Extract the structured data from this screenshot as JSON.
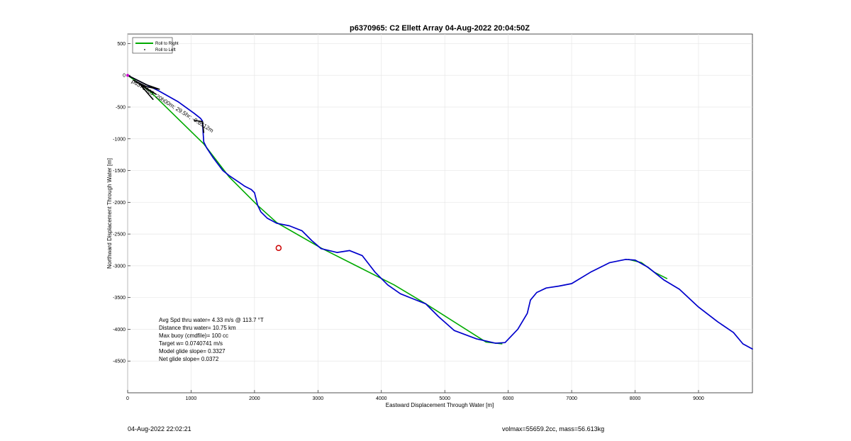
{
  "chart_data": {
    "type": "line",
    "title": "p6370965: C2 Ellett Array 04-Aug-2022 20:04:50Z",
    "xlabel": "Eastward Displacement Through Water [m]",
    "ylabel": "Northward Displacement Through Water [m]",
    "xlim": [
      0,
      9850
    ],
    "ylim": [
      -5000,
      650
    ],
    "xticks": [
      0,
      1000,
      2000,
      3000,
      4000,
      5000,
      6000,
      7000,
      8000,
      9000
    ],
    "yticks": [
      500,
      0,
      -500,
      -1000,
      -1500,
      -2000,
      -2500,
      -3000,
      -3500,
      -4000,
      -4500
    ],
    "grid": true,
    "legend": {
      "placement": "top-left",
      "entries": [
        {
          "label": "Roll to Right",
          "color": "#00aa00",
          "style": "line"
        },
        {
          "label": "Roll to Left",
          "color": "#000000",
          "style": "dot"
        }
      ]
    },
    "series": [
      {
        "name": "Roll to Right",
        "color": "#00aa00",
        "points": [
          [
            0,
            0
          ],
          [
            350,
            -250
          ],
          [
            1200,
            -1080
          ],
          [
            1600,
            -1600
          ],
          [
            2050,
            -2050
          ],
          [
            2350,
            -2320
          ],
          [
            3050,
            -2720
          ],
          [
            4200,
            -3300
          ],
          [
            4700,
            -3600
          ],
          [
            5650,
            -4200
          ],
          [
            5900,
            -4230
          ]
        ]
      },
      {
        "name": "",
        "color": "#00aa00",
        "points": [
          [
            7900,
            -2900
          ],
          [
            8100,
            -2950
          ],
          [
            8300,
            -3100
          ],
          [
            8500,
            -3200
          ]
        ]
      },
      {
        "name": "",
        "color": "#0000cc",
        "points": [
          [
            0,
            0
          ],
          [
            200,
            -100
          ],
          [
            500,
            -250
          ],
          [
            800,
            -420
          ],
          [
            1050,
            -600
          ],
          [
            1150,
            -680
          ],
          [
            1180,
            -720
          ],
          [
            1190,
            -900
          ],
          [
            1200,
            -1050
          ],
          [
            1250,
            -1150
          ],
          [
            1350,
            -1300
          ],
          [
            1500,
            -1500
          ],
          [
            1600,
            -1580
          ],
          [
            1750,
            -1680
          ],
          [
            1850,
            -1750
          ],
          [
            1950,
            -1800
          ],
          [
            2000,
            -1850
          ],
          [
            2050,
            -2050
          ],
          [
            2100,
            -2150
          ],
          [
            2200,
            -2250
          ],
          [
            2350,
            -2330
          ],
          [
            2550,
            -2370
          ],
          [
            2750,
            -2450
          ],
          [
            2900,
            -2600
          ],
          [
            3050,
            -2730
          ],
          [
            3300,
            -2790
          ],
          [
            3500,
            -2760
          ],
          [
            3700,
            -2840
          ],
          [
            3900,
            -3100
          ],
          [
            4100,
            -3300
          ],
          [
            4300,
            -3440
          ],
          [
            4500,
            -3520
          ],
          [
            4700,
            -3600
          ],
          [
            4900,
            -3800
          ],
          [
            5150,
            -4020
          ],
          [
            5500,
            -4150
          ],
          [
            5800,
            -4220
          ],
          [
            5950,
            -4210
          ],
          [
            6150,
            -4000
          ],
          [
            6300,
            -3750
          ],
          [
            6350,
            -3540
          ],
          [
            6450,
            -3420
          ],
          [
            6600,
            -3350
          ],
          [
            6800,
            -3320
          ],
          [
            7000,
            -3280
          ],
          [
            7300,
            -3100
          ],
          [
            7600,
            -2950
          ],
          [
            7850,
            -2900
          ],
          [
            8000,
            -2910
          ],
          [
            8200,
            -3020
          ],
          [
            8450,
            -3220
          ],
          [
            8700,
            -3370
          ],
          [
            9000,
            -3650
          ],
          [
            9300,
            -3880
          ],
          [
            9550,
            -4050
          ],
          [
            9700,
            -4230
          ],
          [
            9850,
            -4310
          ]
        ]
      },
      {
        "name": "Roll to Left",
        "color": "#000000",
        "points": [
          [
            0,
            0
          ],
          [
            300,
            -150
          ],
          [
            500,
            -220
          ],
          [
            300,
            -180
          ],
          [
            100,
            -80
          ],
          [
            450,
            -300
          ],
          [
            200,
            -150
          ],
          [
            400,
            -380
          ]
        ]
      },
      {
        "name": "",
        "color": "#000000",
        "points": [
          [
            1050,
            -710
          ],
          [
            1180,
            -730
          ],
          [
            1200,
            -900
          ]
        ]
      }
    ],
    "markers": [
      {
        "type": "circle",
        "color": "#cc0000",
        "x": 2380,
        "y": -2720
      }
    ],
    "waypoint_label": "p6370965: 20h00m; 29.5hr; -0.8512m",
    "annotations": [
      "Avg Spd thru water=  4.33 m/s @ 113.7 °T",
      "Distance thru water= 10.75 km",
      "Max buoy (cmdfile)= 100 cc",
      "Target w= 0.0740741 m/s",
      "Model glide slope= 0.3327",
      "Net glide slope= 0.0372"
    ]
  },
  "footer": {
    "left": "04-Aug-2022 22:02:21",
    "right": "volmax=55659.2cc, mass=56.613kg"
  }
}
